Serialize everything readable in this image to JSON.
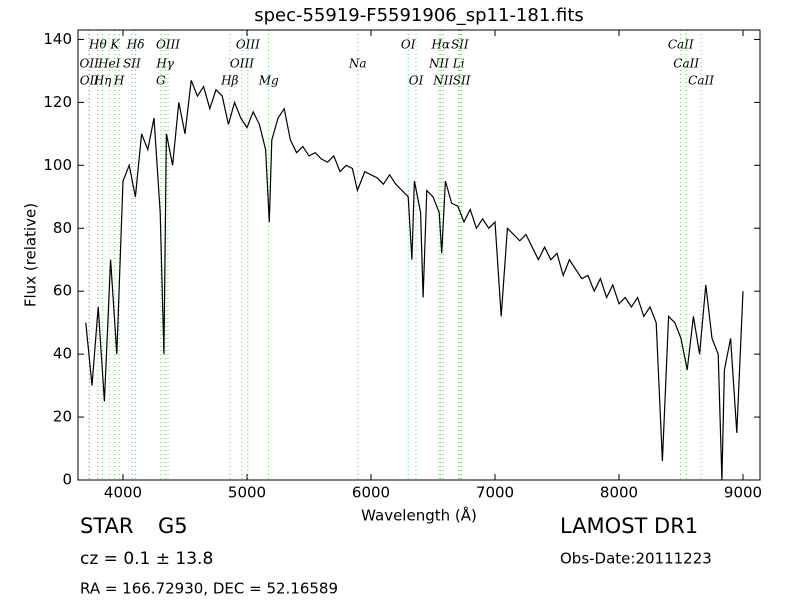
{
  "chart_data": {
    "type": "line",
    "title": "spec-55919-F5591906_sp11-181.fits",
    "xlabel": "Wavelength (Å)",
    "ylabel": "Flux (relative)",
    "x": [
      3700,
      3750,
      3800,
      3850,
      3900,
      3950,
      4000,
      4050,
      4100,
      4150,
      4200,
      4250,
      4300,
      4330,
      4350,
      4400,
      4450,
      4500,
      4550,
      4600,
      4650,
      4700,
      4750,
      4800,
      4850,
      4900,
      4950,
      5000,
      5050,
      5100,
      5150,
      5180,
      5200,
      5250,
      5300,
      5350,
      5400,
      5450,
      5500,
      5550,
      5600,
      5650,
      5700,
      5750,
      5800,
      5850,
      5890,
      5950,
      6000,
      6050,
      6100,
      6150,
      6200,
      6250,
      6300,
      6330,
      6350,
      6400,
      6420,
      6450,
      6500,
      6550,
      6570,
      6600,
      6650,
      6700,
      6750,
      6800,
      6850,
      6900,
      6950,
      7000,
      7050,
      7100,
      7150,
      7200,
      7250,
      7300,
      7350,
      7400,
      7450,
      7500,
      7550,
      7600,
      7650,
      7700,
      7750,
      7800,
      7850,
      7900,
      7950,
      8000,
      8050,
      8100,
      8150,
      8200,
      8250,
      8300,
      8350,
      8400,
      8450,
      8500,
      8550,
      8600,
      8650,
      8700,
      8750,
      8800,
      8830,
      8850,
      8900,
      8950,
      9000
    ],
    "series": [
      {
        "color": "#000000",
        "values": [
          50,
          30,
          55,
          25,
          70,
          40,
          95,
          100,
          90,
          110,
          105,
          115,
          85,
          40,
          110,
          100,
          120,
          110,
          127,
          122,
          125,
          118,
          124,
          122,
          113,
          120,
          115,
          112,
          117,
          113,
          105,
          82,
          108,
          115,
          118,
          108,
          104,
          106,
          103,
          104,
          102,
          101,
          103,
          98,
          100,
          99,
          92,
          98,
          97,
          96,
          94,
          97,
          94,
          92,
          90,
          70,
          95,
          85,
          58,
          92,
          90,
          85,
          72,
          95,
          88,
          87,
          82,
          86,
          80,
          83,
          80,
          82,
          52,
          80,
          78,
          76,
          78,
          74,
          70,
          74,
          70,
          72,
          65,
          70,
          67,
          64,
          65,
          60,
          64,
          58,
          62,
          56,
          58,
          55,
          58,
          52,
          55,
          50,
          6,
          52,
          50,
          45,
          35,
          52,
          40,
          62,
          45,
          40,
          0,
          35,
          45,
          15,
          60
        ]
      }
    ],
    "xlim": [
      3637,
      9137
    ],
    "ylim": [
      0,
      143
    ],
    "xticks": [
      4000,
      5000,
      6000,
      7000,
      8000,
      9000
    ],
    "yticks": [
      0,
      20,
      40,
      60,
      80,
      100,
      120,
      140
    ],
    "line_color": "#66bb66",
    "lines": [
      {
        "label": "Hθ",
        "wavelength": 3797,
        "row": 0
      },
      {
        "label": "K",
        "wavelength": 3934,
        "row": 0
      },
      {
        "label": "Hδ",
        "wavelength": 4102,
        "row": 0
      },
      {
        "label": "OIII",
        "wavelength": 4363,
        "row": 0
      },
      {
        "label": "OIII",
        "wavelength": 5007,
        "row": 0
      },
      {
        "label": "OI",
        "wavelength": 6300,
        "row": 0
      },
      {
        "label": "Hα",
        "wavelength": 6563,
        "row": 0
      },
      {
        "label": "SII",
        "wavelength": 6716,
        "row": 0
      },
      {
        "label": "CaII",
        "wavelength": 8498,
        "row": 0
      },
      {
        "label": "OII",
        "wavelength": 3727,
        "row": 1
      },
      {
        "label": "HeI",
        "wavelength": 3889,
        "row": 1
      },
      {
        "label": "SII",
        "wavelength": 4072,
        "row": 1
      },
      {
        "label": "Hγ",
        "wavelength": 4340,
        "row": 1
      },
      {
        "label": "OIII",
        "wavelength": 4959,
        "row": 1
      },
      {
        "label": "Na",
        "wavelength": 5893,
        "row": 1
      },
      {
        "label": "NII",
        "wavelength": 6548,
        "row": 1
      },
      {
        "label": "Li",
        "wavelength": 6707,
        "row": 1
      },
      {
        "label": "CaII",
        "wavelength": 8542,
        "row": 1
      },
      {
        "label": "OII",
        "wavelength": 3729,
        "row": 2
      },
      {
        "label": "Hη",
        "wavelength": 3835,
        "row": 2
      },
      {
        "label": "H",
        "wavelength": 3969,
        "row": 2
      },
      {
        "label": "G",
        "wavelength": 4305,
        "row": 2
      },
      {
        "label": "Hβ",
        "wavelength": 4861,
        "row": 2
      },
      {
        "label": "Mg",
        "wavelength": 5175,
        "row": 2
      },
      {
        "label": "OI",
        "wavelength": 6363,
        "row": 2
      },
      {
        "label": "NII",
        "wavelength": 6583,
        "row": 2
      },
      {
        "label": "SII",
        "wavelength": 6731,
        "row": 2
      },
      {
        "label": "CaII",
        "wavelength": 8662,
        "row": 2
      }
    ]
  },
  "footer": {
    "class": "STAR",
    "subclass": "G5",
    "cz": "cz = 0.1 ± 13.8",
    "coords": "RA = 166.72930, DEC = 52.16589",
    "release": "LAMOST DR1",
    "date": "Obs-Date:20111223"
  }
}
